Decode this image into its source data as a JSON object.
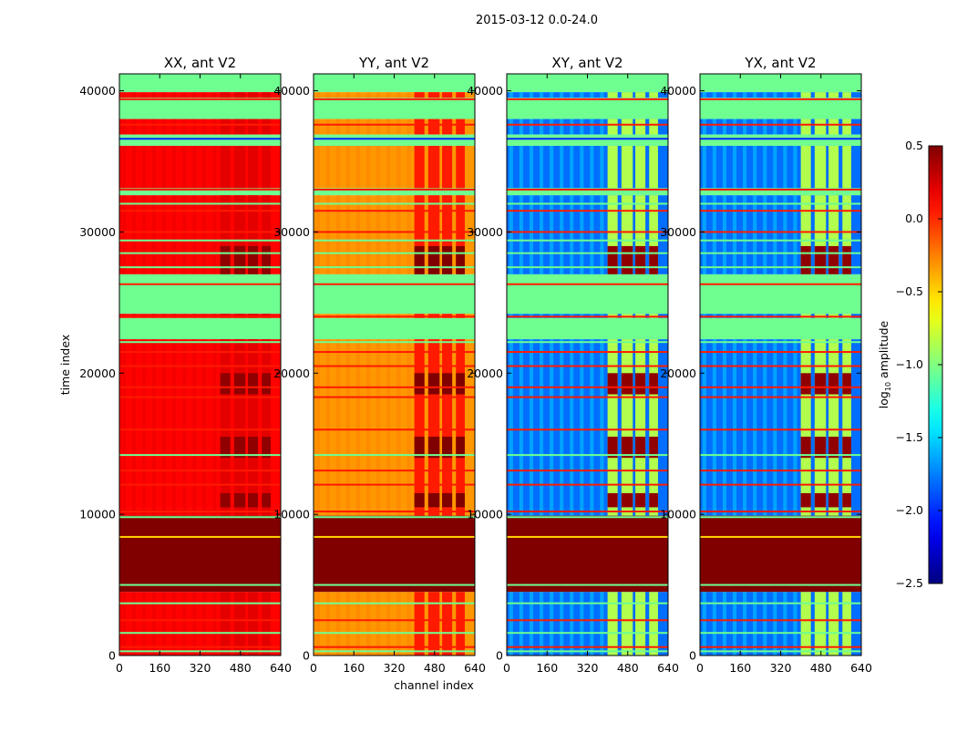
{
  "chart_data": {
    "type": "heatmap",
    "title": "2015-03-12 0.0-24.0",
    "xlabel": "channel index",
    "ylabel": "time index",
    "xlim": [
      0,
      640
    ],
    "ylim": [
      0,
      41200
    ],
    "x_ticks": [
      "0",
      "160",
      "320",
      "480",
      "640"
    ],
    "y_ticks": [
      "0",
      "10000",
      "20000",
      "30000",
      "40000"
    ],
    "panels": [
      {
        "title": "XX, ant V2",
        "base": 0.12,
        "rfi": 0.2,
        "burst": 0.45
      },
      {
        "title": "YY, ant V2",
        "base": -0.32,
        "rfi": 0.05,
        "burst": 0.5
      },
      {
        "title": "XY, ant V2",
        "base": -1.8,
        "rfi": -0.85,
        "burst": 0.45
      },
      {
        "title": "YX, ant V2",
        "base": -1.8,
        "rfi": -0.85,
        "burst": 0.45
      }
    ],
    "colorbar": {
      "label_prefix": "log",
      "label_sub": "10",
      "label_suffix": " amplitude",
      "range": [
        -2.5,
        0.5
      ],
      "ticks": [
        "0.5",
        "0.0",
        "−0.5",
        "−1.0",
        "−1.5",
        "−2.0",
        "−2.5"
      ],
      "tick_values": [
        0.5,
        0.0,
        -0.5,
        -1.0,
        -1.5,
        -2.0,
        -2.5
      ],
      "colormap": "jet"
    },
    "flag_value": -1.05,
    "saturated_value": 0.5,
    "bands": [
      {
        "t": [
          39900,
          41200
        ],
        "kind": "flag"
      },
      {
        "t": [
          39500,
          39900
        ],
        "kind": "data"
      },
      {
        "t": [
          38000,
          39500
        ],
        "kind": "flag"
      },
      {
        "t": [
          36900,
          38000
        ],
        "kind": "data"
      },
      {
        "t": [
          36100,
          36900
        ],
        "kind": "flag"
      },
      {
        "t": [
          33100,
          36100
        ],
        "kind": "data"
      },
      {
        "t": [
          32600,
          33100
        ],
        "kind": "flag"
      },
      {
        "t": [
          27000,
          32600
        ],
        "kind": "data"
      },
      {
        "t": [
          24200,
          27000
        ],
        "kind": "flag"
      },
      {
        "t": [
          23900,
          24200
        ],
        "kind": "data"
      },
      {
        "t": [
          22400,
          23900
        ],
        "kind": "flag"
      },
      {
        "t": [
          10400,
          22400
        ],
        "kind": "data"
      },
      {
        "t": [
          9900,
          10400
        ],
        "kind": "data"
      },
      {
        "t": [
          4500,
          9900
        ],
        "kind": "saturated"
      },
      {
        "t": [
          0,
          4500
        ],
        "kind": "data"
      }
    ],
    "lines": [
      {
        "t": 39400,
        "value": 0.05
      },
      {
        "t": 37600,
        "value": 0.05
      },
      {
        "t": 36600,
        "value": -2.0
      },
      {
        "t": 33000,
        "value": 0.05
      },
      {
        "t": 32000,
        "value": -1.05
      },
      {
        "t": 31500,
        "value": 0.05
      },
      {
        "t": 30000,
        "value": 0.05
      },
      {
        "t": 29400,
        "value": -1.05
      },
      {
        "t": 28500,
        "value": -1.05
      },
      {
        "t": 27500,
        "value": -1.05
      },
      {
        "t": 26300,
        "value": 0.05
      },
      {
        "t": 24000,
        "value": 0.05
      },
      {
        "t": 22200,
        "value": -1.05
      },
      {
        "t": 21500,
        "value": 0.05
      },
      {
        "t": 20500,
        "value": 0.05
      },
      {
        "t": 19000,
        "value": 0.05
      },
      {
        "t": 18300,
        "value": 0.05
      },
      {
        "t": 16000,
        "value": 0.05
      },
      {
        "t": 14200,
        "value": -1.05
      },
      {
        "t": 13100,
        "value": 0.05
      },
      {
        "t": 12100,
        "value": 0.05
      },
      {
        "t": 10200,
        "value": 0.05
      },
      {
        "t": 9800,
        "value": -1.05
      },
      {
        "t": 8400,
        "value": -0.5
      },
      {
        "t": 5000,
        "value": -1.05
      },
      {
        "t": 3700,
        "value": -1.05
      },
      {
        "t": 2500,
        "value": 0.05
      },
      {
        "t": 1600,
        "value": -1.05
      },
      {
        "t": 600,
        "value": 0.05
      },
      {
        "t": 300,
        "value": -1.05
      }
    ],
    "rfi_channels": [
      [
        400,
        440
      ],
      [
        455,
        500
      ],
      [
        510,
        550
      ],
      [
        565,
        600
      ]
    ],
    "bursts": [
      [
        10500,
        11500
      ],
      [
        14000,
        15500
      ],
      [
        18500,
        20000
      ],
      [
        27000,
        29000
      ]
    ]
  }
}
